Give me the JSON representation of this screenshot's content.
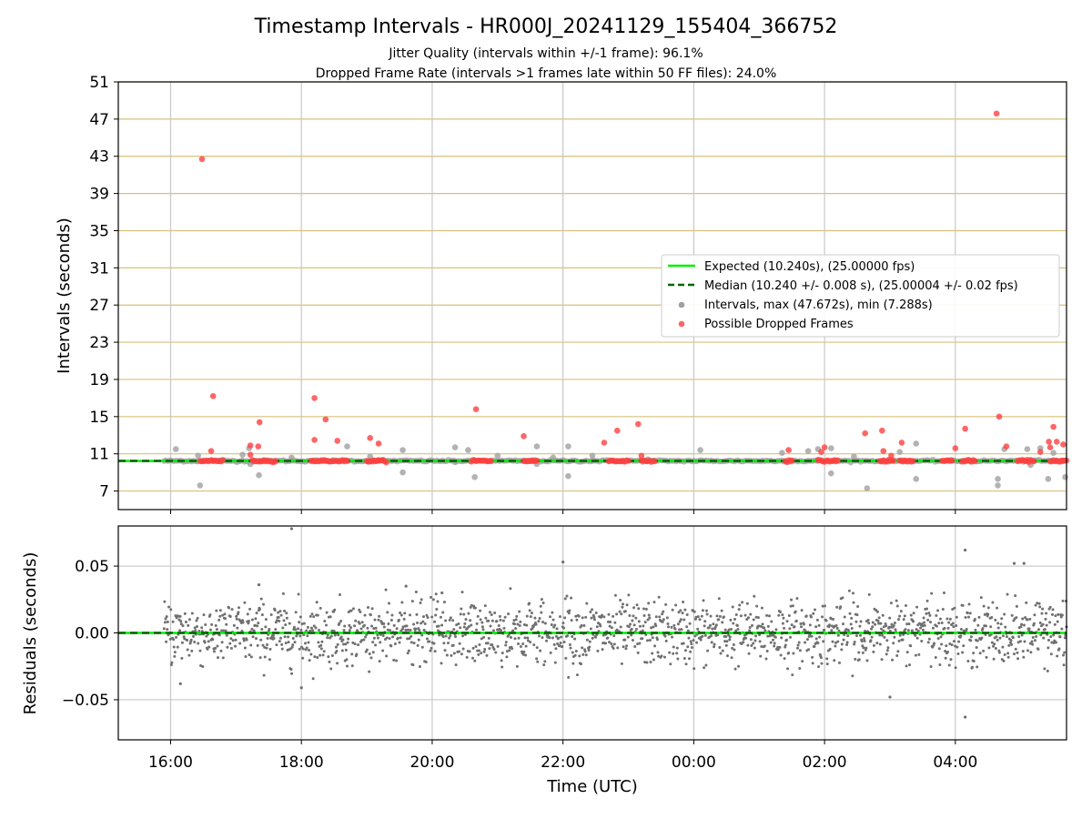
{
  "chart_data": [
    {
      "type": "scatter",
      "title": "Timestamp Intervals - HR000J_20241129_155404_366752",
      "subtitle_lines": [
        "Jitter Quality (intervals within +/-1 frame): 96.1%",
        "Dropped Frame Rate (intervals >1 frames late within 50 FF files): 24.0%"
      ],
      "ylabel": "Intervals (seconds)",
      "x_tick_labels": [
        "16:00",
        "18:00",
        "20:00",
        "22:00",
        "00:00",
        "02:00",
        "04:00"
      ],
      "x_tick_hours": [
        16,
        18,
        20,
        22,
        24,
        26,
        28
      ],
      "xlim_hours": [
        15.2,
        29.7
      ],
      "ylim": [
        5,
        51
      ],
      "y_ticks": [
        7,
        11,
        15,
        19,
        23,
        27,
        31,
        35,
        39,
        43,
        47,
        51
      ],
      "grid": true,
      "legend_placement": "center-right",
      "expected_line": {
        "label": "Expected (10.240s), (25.00000 fps)",
        "value": 10.24,
        "color": "#00ee00"
      },
      "median_line": {
        "label": "Median (10.240 +/- 0.008 s), (25.00004 +/- 0.02 fps)",
        "value": 10.24,
        "color": "#006400"
      },
      "series": [
        {
          "name": "Intervals, max (47.672s), min (7.288s)",
          "color": "#a0a0a0",
          "points": [
            [
              16.08,
              11.5
            ],
            [
              16.45,
              7.6
            ],
            [
              16.42,
              10.8
            ],
            [
              17.1,
              10.9
            ],
            [
              17.2,
              11.6
            ],
            [
              17.22,
              9.9
            ],
            [
              17.35,
              8.7
            ],
            [
              17.85,
              10.6
            ],
            [
              18.7,
              11.8
            ],
            [
              19.05,
              10.7
            ],
            [
              19.55,
              11.4
            ],
            [
              19.55,
              9.0
            ],
            [
              20.35,
              11.7
            ],
            [
              20.35,
              10.1
            ],
            [
              20.55,
              11.4
            ],
            [
              20.65,
              8.5
            ],
            [
              21.0,
              10.8
            ],
            [
              21.6,
              11.8
            ],
            [
              21.6,
              9.9
            ],
            [
              21.85,
              10.6
            ],
            [
              22.08,
              11.8
            ],
            [
              22.08,
              8.6
            ],
            [
              22.45,
              10.3
            ],
            [
              22.45,
              10.8
            ],
            [
              23.3,
              10.4
            ],
            [
              24.1,
              11.4
            ],
            [
              25.35,
              11.1
            ],
            [
              25.75,
              11.3
            ],
            [
              25.9,
              11.5
            ],
            [
              26.1,
              11.6
            ],
            [
              26.1,
              8.9
            ],
            [
              26.45,
              10.7
            ],
            [
              26.65,
              7.3
            ],
            [
              27.15,
              11.2
            ],
            [
              27.4,
              12.1
            ],
            [
              27.4,
              8.3
            ],
            [
              27.95,
              10.3
            ],
            [
              28.65,
              8.3
            ],
            [
              28.65,
              7.6
            ],
            [
              28.75,
              11.5
            ],
            [
              29.1,
              11.5
            ],
            [
              29.15,
              9.8
            ],
            [
              29.3,
              11.6
            ],
            [
              29.42,
              8.3
            ],
            [
              29.68,
              8.5
            ],
            [
              29.5,
              11.1
            ]
          ]
        },
        {
          "name": "Possible Dropped Frames",
          "color": "#ff4040",
          "points": [
            [
              16.48,
              42.7
            ],
            [
              16.65,
              17.2
            ],
            [
              16.62,
              11.3
            ],
            [
              17.22,
              11.9
            ],
            [
              17.22,
              10.9
            ],
            [
              17.36,
              14.4
            ],
            [
              17.34,
              11.8
            ],
            [
              18.2,
              17.0
            ],
            [
              18.2,
              12.5
            ],
            [
              18.37,
              14.7
            ],
            [
              18.55,
              12.4
            ],
            [
              19.05,
              12.7
            ],
            [
              19.18,
              12.1
            ],
            [
              20.67,
              15.8
            ],
            [
              21.4,
              12.9
            ],
            [
              22.63,
              12.2
            ],
            [
              22.83,
              13.5
            ],
            [
              23.15,
              14.2
            ],
            [
              23.2,
              10.8
            ],
            [
              25.45,
              11.4
            ],
            [
              26.0,
              11.7
            ],
            [
              25.95,
              11.2
            ],
            [
              26.62,
              13.2
            ],
            [
              26.88,
              13.5
            ],
            [
              26.9,
              11.3
            ],
            [
              27.02,
              10.8
            ],
            [
              27.18,
              12.2
            ],
            [
              28.0,
              11.6
            ],
            [
              28.15,
              13.7
            ],
            [
              28.63,
              47.6
            ],
            [
              28.67,
              15.0
            ],
            [
              28.78,
              11.8
            ],
            [
              29.3,
              11.2
            ],
            [
              29.43,
              12.3
            ],
            [
              29.5,
              13.9
            ],
            [
              29.55,
              12.3
            ],
            [
              29.65,
              12.0
            ],
            [
              29.45,
              11.7
            ]
          ],
          "clusters_at_10_24_hours": [
            [
              16.45,
              16.8
            ],
            [
              17.25,
              17.6
            ],
            [
              18.15,
              18.7
            ],
            [
              19.0,
              19.3
            ],
            [
              20.6,
              20.9
            ],
            [
              21.4,
              21.6
            ],
            [
              22.7,
              23.0
            ],
            [
              23.2,
              23.4
            ],
            [
              25.4,
              25.5
            ],
            [
              25.9,
              26.2
            ],
            [
              26.85,
              27.05
            ],
            [
              27.15,
              27.35
            ],
            [
              27.8,
              27.95
            ],
            [
              28.1,
              28.3
            ],
            [
              28.95,
              29.2
            ],
            [
              29.45,
              29.7
            ]
          ]
        }
      ]
    },
    {
      "type": "scatter",
      "ylabel": "Residuals (seconds)",
      "xlabel": "Time (UTC)",
      "x_tick_labels": [
        "16:00",
        "18:00",
        "20:00",
        "22:00",
        "00:00",
        "02:00",
        "04:00"
      ],
      "xlim_hours": [
        15.2,
        29.7
      ],
      "ylim": [
        -0.08,
        0.08
      ],
      "y_ticks": [
        0.05,
        0.0,
        -0.05
      ],
      "y_tick_labels": [
        "0.05",
        "0.00",
        "−0.05"
      ],
      "grid": true,
      "series": [
        {
          "name": "Residuals",
          "color": "#707070",
          "spread": 0.012,
          "outliers": [
            [
              17.85,
              0.078
            ],
            [
              22.0,
              0.053
            ],
            [
              28.15,
              0.062
            ],
            [
              28.15,
              -0.063
            ],
            [
              28.9,
              0.052
            ],
            [
              29.05,
              0.052
            ],
            [
              27.0,
              -0.048
            ],
            [
              18.0,
              -0.041
            ],
            [
              16.15,
              -0.038
            ],
            [
              17.35,
              0.036
            ],
            [
              19.6,
              0.035
            ],
            [
              20.15,
              0.03
            ]
          ]
        }
      ]
    }
  ],
  "legend": {
    "items": [
      "Expected (10.240s), (25.00000 fps)",
      "Median (10.240 +/- 0.008 s), (25.00004 +/- 0.02 fps)",
      "Intervals, max (47.672s), min (7.288s)",
      "Possible Dropped Frames"
    ]
  }
}
